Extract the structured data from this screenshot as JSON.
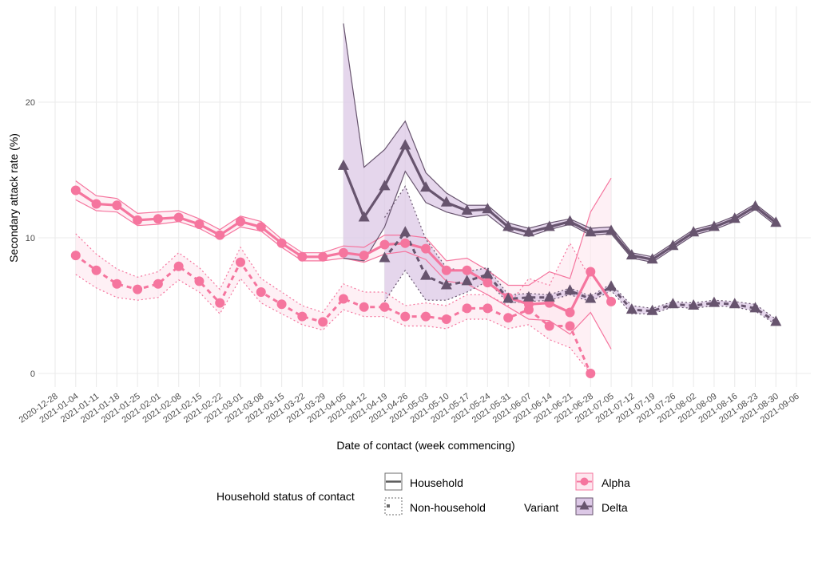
{
  "chart_data": {
    "type": "line",
    "title": "",
    "xlabel": "Date of contact (week commencing)",
    "ylabel": "Secondary attack rate (%)",
    "ylim": [
      -1,
      26
    ],
    "yticks": [
      0,
      10,
      20
    ],
    "grid": true,
    "x_ticks": [
      "2020-12-28",
      "2021-01-04",
      "2021-01-11",
      "2021-01-18",
      "2021-01-25",
      "2021-02-01",
      "2021-02-08",
      "2021-02-15",
      "2021-02-22",
      "2021-03-01",
      "2021-03-08",
      "2021-03-15",
      "2021-03-22",
      "2021-03-29",
      "2021-04-05",
      "2021-04-12",
      "2021-04-19",
      "2021-04-26",
      "2021-05-03",
      "2021-05-10",
      "2021-05-17",
      "2021-05-24",
      "2021-05-31",
      "2021-06-07",
      "2021-06-14",
      "2021-06-21",
      "2021-06-28",
      "2021-07-05",
      "2021-07-12",
      "2021-07-19",
      "2021-07-26",
      "2021-08-02",
      "2021-08-09",
      "2021-08-16",
      "2021-08-23",
      "2021-08-30",
      "2021-09-06"
    ],
    "legend_position": "bottom",
    "legend": {
      "household_title": "Household status of contact",
      "household_items": [
        "Household",
        "Non-household"
      ],
      "variant_title": "Variant",
      "variant_items": [
        "Alpha",
        "Delta"
      ]
    },
    "colors": {
      "Alpha": "#f5759e",
      "Delta": "#67546e",
      "Alpha_fill": "#fde6ee",
      "Delta_fill": "#dcc8e6"
    },
    "series": [
      {
        "name": "Alpha - Household",
        "variant": "Alpha",
        "status": "Household",
        "start": "2021-01-04",
        "values": [
          13.5,
          12.5,
          12.4,
          11.3,
          11.4,
          11.5,
          11.0,
          10.2,
          11.2,
          10.8,
          9.6,
          8.6,
          8.6,
          8.9,
          8.7,
          9.5,
          9.6,
          9.2,
          7.6,
          7.6,
          6.7,
          5.6,
          5.1,
          5.2,
          4.5,
          7.5,
          5.3
        ],
        "lower": [
          12.8,
          12.0,
          11.9,
          10.9,
          11.0,
          11.2,
          10.7,
          9.9,
          10.8,
          10.5,
          9.3,
          8.3,
          8.3,
          8.5,
          8.2,
          8.8,
          9.0,
          8.4,
          6.8,
          6.6,
          5.8,
          4.9,
          4.0,
          3.9,
          2.9,
          4.5,
          1.8
        ],
        "upper": [
          14.2,
          13.1,
          12.9,
          11.8,
          11.9,
          12.0,
          11.4,
          10.6,
          11.6,
          11.2,
          9.9,
          8.9,
          8.9,
          9.4,
          9.3,
          10.2,
          10.2,
          10.0,
          8.3,
          8.5,
          7.6,
          6.5,
          6.5,
          7.5,
          7.0,
          11.9,
          14.4
        ]
      },
      {
        "name": "Alpha - Non-household",
        "variant": "Alpha",
        "status": "Non-household",
        "start": "2021-01-04",
        "values": [
          8.7,
          7.6,
          6.6,
          6.2,
          6.6,
          7.9,
          6.8,
          5.2,
          8.2,
          6.0,
          5.1,
          4.2,
          3.8,
          5.5,
          4.9,
          4.9,
          4.2,
          4.2,
          4.0,
          4.8,
          4.8,
          4.1,
          4.7,
          3.5,
          3.5,
          0.0
        ],
        "lower": [
          7.3,
          6.3,
          5.6,
          5.4,
          5.6,
          6.9,
          6.0,
          4.4,
          7.0,
          5.2,
          4.4,
          3.6,
          3.2,
          4.7,
          4.2,
          4.2,
          3.5,
          3.5,
          3.3,
          4.0,
          4.0,
          3.3,
          3.6,
          2.5,
          1.9,
          0.0
        ],
        "upper": [
          10.3,
          8.8,
          7.7,
          7.1,
          7.5,
          8.9,
          7.8,
          6.2,
          9.3,
          7.0,
          6.0,
          5.0,
          4.5,
          6.6,
          6.0,
          6.0,
          5.0,
          5.2,
          5.0,
          5.8,
          5.8,
          5.0,
          7.0,
          6.5,
          9.6,
          7.0
        ]
      },
      {
        "name": "Delta - Household",
        "variant": "Delta",
        "status": "Household",
        "start": "2021-04-05",
        "values": [
          15.3,
          11.5,
          13.8,
          16.8,
          13.7,
          12.6,
          12.0,
          12.1,
          10.8,
          10.4,
          10.8,
          11.2,
          10.4,
          10.5,
          8.7,
          8.4,
          9.4,
          10.4,
          10.8,
          11.4,
          12.3,
          11.1
        ],
        "lower": [
          8.5,
          8.3,
          10.8,
          14.9,
          12.6,
          11.9,
          11.5,
          11.7,
          10.5,
          10.1,
          10.6,
          11.0,
          10.2,
          10.3,
          8.5,
          8.2,
          9.2,
          10.2,
          10.6,
          11.2,
          12.1,
          10.9
        ],
        "upper": [
          25.8,
          15.2,
          16.5,
          18.6,
          14.8,
          13.3,
          12.4,
          12.4,
          11.1,
          10.7,
          11.1,
          11.4,
          10.7,
          10.8,
          8.9,
          8.6,
          9.6,
          10.6,
          11.0,
          11.6,
          12.5,
          11.3
        ]
      },
      {
        "name": "Delta - Non-household",
        "variant": "Delta",
        "status": "Non-household",
        "start": "2021-04-19",
        "values": [
          8.5,
          10.4,
          7.2,
          6.5,
          6.8,
          7.3,
          5.5,
          5.6,
          5.6,
          6.1,
          5.5,
          6.4,
          4.7,
          4.6,
          5.1,
          5.0,
          5.2,
          5.1,
          4.8,
          3.8
        ],
        "lower": [
          5.3,
          7.6,
          5.4,
          5.4,
          6.0,
          6.8,
          5.2,
          5.3,
          5.4,
          5.8,
          5.3,
          6.1,
          4.4,
          4.4,
          4.9,
          4.8,
          5.0,
          4.9,
          4.6,
          3.6
        ],
        "upper": [
          11.5,
          13.8,
          9.9,
          7.8,
          7.5,
          7.8,
          5.8,
          5.9,
          5.8,
          6.3,
          5.7,
          6.6,
          5.0,
          4.8,
          5.3,
          5.2,
          5.4,
          5.3,
          5.1,
          4.0
        ]
      }
    ]
  }
}
